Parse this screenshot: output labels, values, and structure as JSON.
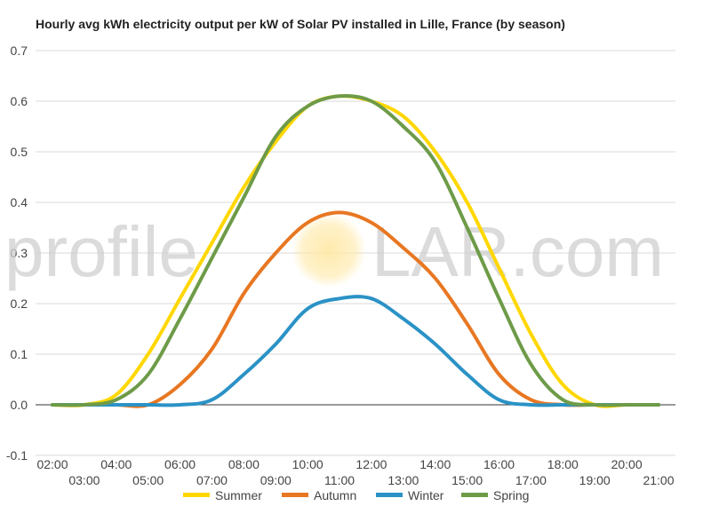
{
  "chart_data": {
    "type": "line",
    "title": "Hourly avg kWh electricity output per kW of Solar PV installed in Lille, France (by season)",
    "x": [
      "02:00",
      "03:00",
      "04:00",
      "05:00",
      "06:00",
      "07:00",
      "08:00",
      "09:00",
      "10:00",
      "11:00",
      "12:00",
      "13:00",
      "14:00",
      "15:00",
      "16:00",
      "17:00",
      "18:00",
      "19:00",
      "20:00",
      "21:00"
    ],
    "ylim": [
      -0.1,
      0.7
    ],
    "yticks": [
      -0.1,
      0.0,
      0.1,
      0.2,
      0.3,
      0.4,
      0.5,
      0.6,
      0.7
    ],
    "ytick_labels": [
      "-0.1",
      "0.0",
      "0.1",
      "0.2",
      "0.3",
      "0.4",
      "0.5",
      "0.6",
      "0.7"
    ],
    "grid": true,
    "legend": "bottom",
    "series": [
      {
        "name": "Summer",
        "color": "#FFD700",
        "values": [
          0.0,
          0.0,
          0.02,
          0.1,
          0.21,
          0.32,
          0.43,
          0.52,
          0.59,
          0.61,
          0.6,
          0.57,
          0.5,
          0.4,
          0.27,
          0.14,
          0.04,
          0.0,
          0.0,
          0.0
        ]
      },
      {
        "name": "Autumn",
        "color": "#E87722",
        "values": [
          0.0,
          0.0,
          0.0,
          0.0,
          0.04,
          0.11,
          0.22,
          0.3,
          0.36,
          0.38,
          0.36,
          0.31,
          0.25,
          0.16,
          0.06,
          0.01,
          0.0,
          0.0,
          0.0,
          0.0
        ]
      },
      {
        "name": "Winter",
        "color": "#2B92C6",
        "values": [
          0.0,
          0.0,
          0.0,
          0.0,
          0.0,
          0.01,
          0.06,
          0.12,
          0.19,
          0.21,
          0.21,
          0.17,
          0.12,
          0.06,
          0.01,
          0.0,
          0.0,
          0.0,
          0.0,
          0.0
        ]
      },
      {
        "name": "Spring",
        "color": "#6E9B48",
        "values": [
          0.0,
          0.0,
          0.01,
          0.06,
          0.17,
          0.29,
          0.41,
          0.53,
          0.59,
          0.61,
          0.6,
          0.55,
          0.48,
          0.35,
          0.21,
          0.08,
          0.01,
          0.0,
          0.0,
          0.0
        ]
      }
    ]
  },
  "watermark": {
    "left": "profile",
    "right": "LAR.com",
    "sun_color": "#FFE08A"
  }
}
